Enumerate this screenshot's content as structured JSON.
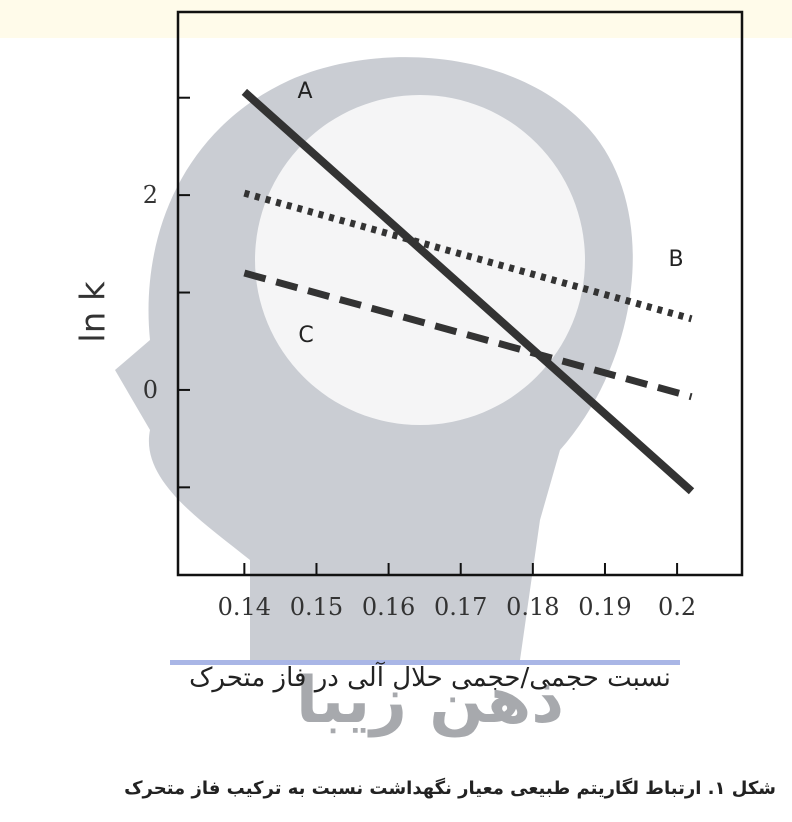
{
  "chart_data": {
    "type": "line",
    "ylabel": "ln k",
    "xlabel": "نسبت حجمی/حجمی حلال آلی در فاز متحرک",
    "caption": "شکل ۱. ارتباط لگاریتم طبیعی معیار نگهداشت نسبت به ترکیب فاز متحرک",
    "watermark": "ذهن زیبا",
    "x": [
      0.14,
      0.202
    ],
    "series": [
      {
        "name": "A",
        "color": "#333333",
        "style": "solid",
        "values": [
          3.06,
          -1.04
        ]
      },
      {
        "name": "B",
        "color": "#333333",
        "style": "dotted",
        "values": [
          2.02,
          0.73
        ]
      },
      {
        "name": "C",
        "color": "#333333",
        "style": "dashed",
        "values": [
          1.2,
          -0.07
        ]
      }
    ],
    "xlim": [
      0.1308,
      0.209
    ],
    "xticks": [
      0.14,
      0.15,
      0.16,
      0.17,
      0.18,
      0.19,
      0.2
    ],
    "ylim": [
      -1.9,
      3.88
    ],
    "yticks": [
      2,
      0
    ],
    "minor_yticks": [
      3,
      1,
      -1
    ]
  }
}
